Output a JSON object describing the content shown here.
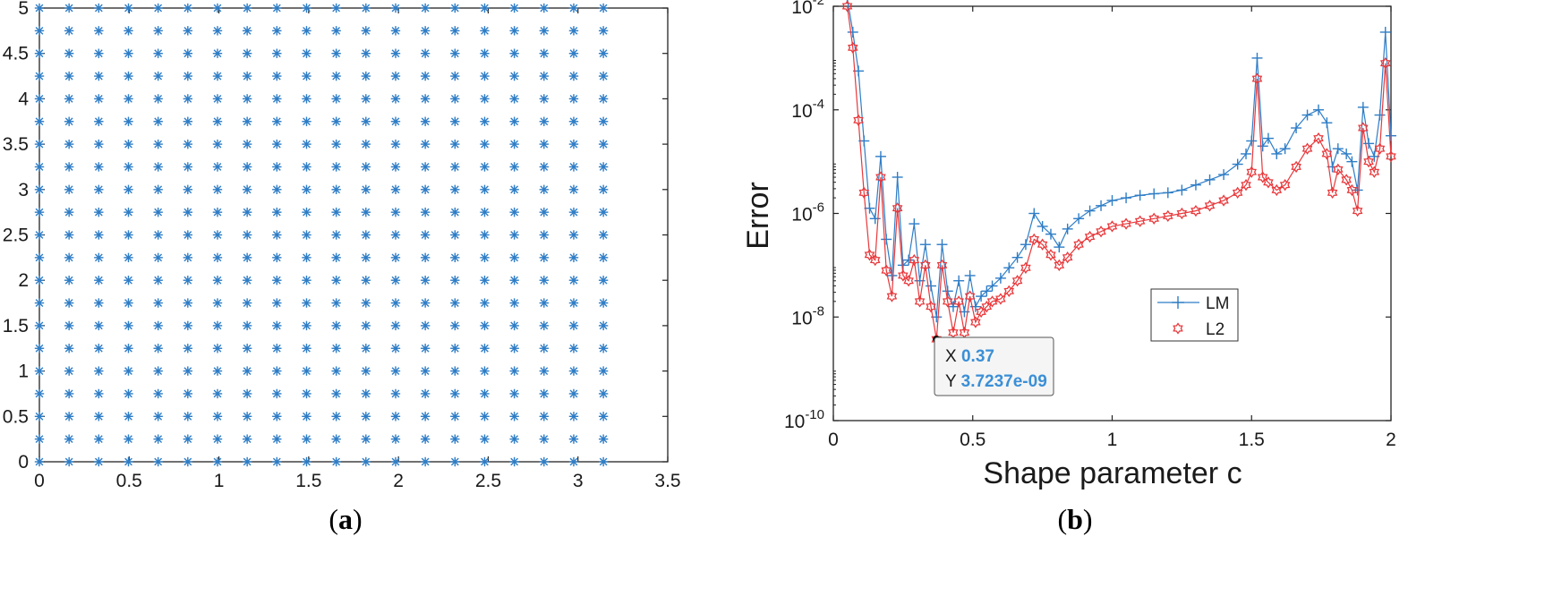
{
  "captions": {
    "a": "a",
    "b": "b"
  },
  "chart_data": [
    {
      "id": "a",
      "type": "scatter",
      "title": "",
      "xlabel": "",
      "ylabel": "",
      "xlim": [
        0,
        3.5
      ],
      "ylim": [
        0,
        5
      ],
      "xticks": [
        "0",
        "0.5",
        "1",
        "1.5",
        "2",
        "2.5",
        "3",
        "3.5"
      ],
      "yticks": [
        "0",
        "0.5",
        "1",
        "1.5",
        "2",
        "2.5",
        "3",
        "3.5",
        "4",
        "4.5",
        "5"
      ],
      "marker": "asterisk",
      "color": "#2e7dc6",
      "grid_x": {
        "start": 0,
        "step": 0.16534698176788237,
        "count": 20
      },
      "grid_y": {
        "start": 0,
        "step": 0.25,
        "count": 21
      }
    },
    {
      "id": "b",
      "type": "line",
      "title": "",
      "xlabel": "Shape parameter c",
      "ylabel": "Error",
      "xlim": [
        0,
        2
      ],
      "ylim_log10": [
        -10,
        -2
      ],
      "xticks": [
        "0",
        "0.5",
        "1",
        "1.5",
        "2"
      ],
      "yticks": [
        {
          "base": "10",
          "exp": "-10"
        },
        {
          "base": "10",
          "exp": "-8"
        },
        {
          "base": "10",
          "exp": "-6"
        },
        {
          "base": "10",
          "exp": "-4"
        },
        {
          "base": "10",
          "exp": "-2"
        }
      ],
      "legend": {
        "position": "center-right",
        "entries": [
          "LM",
          "L2"
        ]
      },
      "series": [
        {
          "name": "LM",
          "color": "#2e7dc6",
          "marker": "plus",
          "x": [
            0.05,
            0.07,
            0.09,
            0.11,
            0.13,
            0.15,
            0.17,
            0.19,
            0.21,
            0.23,
            0.25,
            0.27,
            0.29,
            0.31,
            0.33,
            0.35,
            0.37,
            0.39,
            0.41,
            0.43,
            0.45,
            0.47,
            0.49,
            0.51,
            0.53,
            0.55,
            0.57,
            0.6,
            0.63,
            0.66,
            0.69,
            0.72,
            0.75,
            0.78,
            0.81,
            0.84,
            0.88,
            0.92,
            0.96,
            1.0,
            1.05,
            1.1,
            1.15,
            1.2,
            1.25,
            1.3,
            1.35,
            1.4,
            1.45,
            1.48,
            1.5,
            1.52,
            1.54,
            1.56,
            1.59,
            1.62,
            1.66,
            1.7,
            1.74,
            1.77,
            1.79,
            1.81,
            1.84,
            1.86,
            1.88,
            1.9,
            1.92,
            1.94,
            1.96,
            1.98,
            2.0
          ],
          "y_log10": [
            -1.85,
            -2.5,
            -3.25,
            -4.6,
            -5.9,
            -6.1,
            -4.9,
            -6.5,
            -7.2,
            -5.3,
            -7.0,
            -6.9,
            -6.2,
            -7.3,
            -6.6,
            -7.4,
            -8.0,
            -6.6,
            -7.5,
            -7.8,
            -7.3,
            -7.9,
            -7.2,
            -7.8,
            -7.6,
            -7.5,
            -7.4,
            -7.25,
            -7.05,
            -6.85,
            -6.6,
            -6.0,
            -6.25,
            -6.4,
            -6.65,
            -6.3,
            -6.1,
            -5.95,
            -5.85,
            -5.75,
            -5.7,
            -5.65,
            -5.62,
            -5.6,
            -5.55,
            -5.45,
            -5.35,
            -5.25,
            -5.05,
            -4.85,
            -4.6,
            -3.0,
            -4.7,
            -4.55,
            -4.85,
            -4.75,
            -4.35,
            -4.1,
            -4.0,
            -4.25,
            -5.1,
            -4.75,
            -4.85,
            -5.0,
            -5.55,
            -3.95,
            -4.65,
            -4.9,
            -4.1,
            -2.5,
            -4.5
          ]
        },
        {
          "name": "L2",
          "color": "#e8383b",
          "marker": "hexagram",
          "x": [
            0.05,
            0.07,
            0.09,
            0.11,
            0.13,
            0.15,
            0.17,
            0.19,
            0.21,
            0.23,
            0.25,
            0.27,
            0.29,
            0.31,
            0.33,
            0.35,
            0.37,
            0.39,
            0.41,
            0.43,
            0.45,
            0.47,
            0.49,
            0.51,
            0.53,
            0.55,
            0.57,
            0.6,
            0.63,
            0.66,
            0.69,
            0.72,
            0.75,
            0.78,
            0.81,
            0.84,
            0.88,
            0.92,
            0.96,
            1.0,
            1.05,
            1.1,
            1.15,
            1.2,
            1.25,
            1.3,
            1.35,
            1.4,
            1.45,
            1.48,
            1.5,
            1.52,
            1.54,
            1.56,
            1.59,
            1.62,
            1.66,
            1.7,
            1.74,
            1.77,
            1.79,
            1.81,
            1.84,
            1.86,
            1.88,
            1.9,
            1.92,
            1.94,
            1.96,
            1.98,
            2.0
          ],
          "y_log10": [
            -2.0,
            -2.8,
            -4.2,
            -5.6,
            -6.8,
            -6.9,
            -5.3,
            -7.1,
            -7.6,
            -5.9,
            -7.2,
            -7.3,
            -6.9,
            -7.7,
            -7.0,
            -7.8,
            -8.43,
            -7.0,
            -7.7,
            -8.3,
            -7.7,
            -8.3,
            -7.6,
            -8.1,
            -7.9,
            -7.8,
            -7.7,
            -7.65,
            -7.5,
            -7.3,
            -7.05,
            -6.5,
            -6.6,
            -6.8,
            -7.0,
            -6.85,
            -6.6,
            -6.45,
            -6.35,
            -6.25,
            -6.2,
            -6.15,
            -6.1,
            -6.05,
            -6.0,
            -5.95,
            -5.85,
            -5.75,
            -5.6,
            -5.45,
            -5.2,
            -3.4,
            -5.3,
            -5.4,
            -5.55,
            -5.45,
            -5.1,
            -4.75,
            -4.55,
            -4.85,
            -5.6,
            -5.15,
            -5.35,
            -5.55,
            -5.95,
            -4.35,
            -5.0,
            -5.2,
            -4.75,
            -3.1,
            -4.9
          ]
        }
      ],
      "datatip": {
        "x_label": "X",
        "x_value": "0.37",
        "y_label": "Y",
        "y_value": "3.7237e-09",
        "point_x": 0.37,
        "point_y_log10": -8.43
      }
    }
  ]
}
